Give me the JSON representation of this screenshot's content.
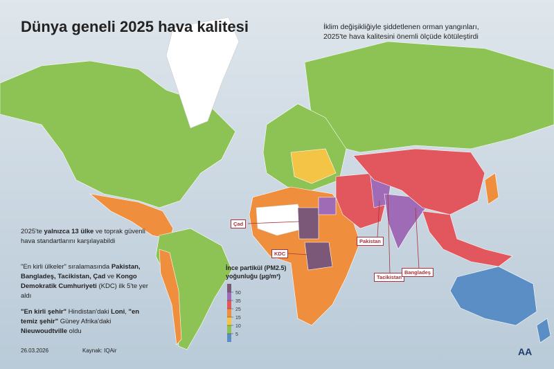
{
  "title": "Dünya geneli 2025 hava kalitesi",
  "subtitle": "İklim değişikliğiyle şiddetlenen orman yangınları, 2025'te hava kalitesini önemli ölçüde kötüleştirdi",
  "notes": [
    [
      "2025'te ",
      "yalnızca 13 ülke",
      " ve toprak güvenli hava standartlarını karşılayabildi"
    ],
    [
      "\"En kirli ülkeler\" sıralamasında ",
      "Pakistan, Bangladeş, Tacikistan, Çad",
      " ve ",
      "Kongo Demokratik Cumhuriyeti",
      " (KDC) ilk 5'te yer aldı"
    ],
    [
      "\"En kirli şehir\"",
      " Hindistan'daki ",
      "Loni",
      ", ",
      "\"en temiz şehir\"",
      " Güney Afrika'daki ",
      "Nieuwoudtville",
      " oldu"
    ]
  ],
  "country_labels": [
    "Çad",
    "KDC",
    "Pakistan",
    "Tacikistan",
    "Bangladeş"
  ],
  "legend": {
    "title": "İnce partikül (PM2.5) yoğunluğu (μg/m³)",
    "ticks": [
      50,
      35,
      25,
      15,
      10,
      5
    ],
    "colors": [
      "#7c5878",
      "#a06bb6",
      "#e2575d",
      "#ef8e3d",
      "#f3c445",
      "#8dc254",
      "#5c8ec6"
    ]
  },
  "date": "26.03.2026",
  "source": "Kaynak: IQAir",
  "logo": "AA"
}
